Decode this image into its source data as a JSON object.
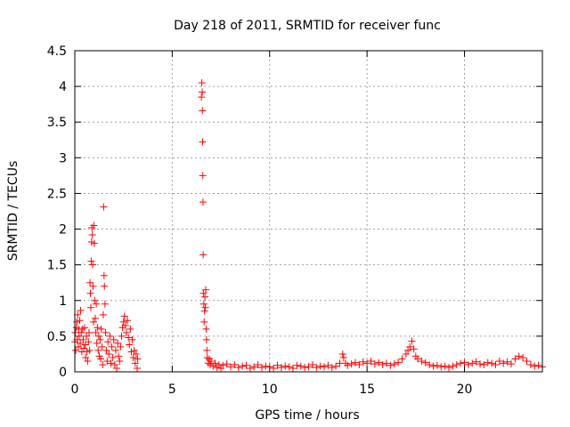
{
  "chart_data": {
    "type": "scatter",
    "title": "Day 218 of 2011, SRMTID for receiver func",
    "xlabel": "GPS time / hours",
    "ylabel": "SRMTID / TECUs",
    "xlim": [
      0,
      24
    ],
    "ylim": [
      0,
      4.5
    ],
    "xticks": [
      0,
      5,
      10,
      15,
      20
    ],
    "yticks": [
      0,
      0.5,
      1,
      1.5,
      2,
      2.5,
      3,
      3.5,
      4,
      4.5
    ],
    "grid": true,
    "marker": "+",
    "color": "#ff0000",
    "series": [
      {
        "points": [
          [
            0.0,
            0.42
          ],
          [
            0.02,
            0.55
          ],
          [
            0.05,
            0.3
          ],
          [
            0.08,
            0.62
          ],
          [
            0.1,
            0.7
          ],
          [
            0.12,
            0.45
          ],
          [
            0.15,
            0.8
          ],
          [
            0.18,
            0.35
          ],
          [
            0.2,
            0.6
          ],
          [
            0.22,
            0.5
          ],
          [
            0.25,
            0.72
          ],
          [
            0.28,
            0.4
          ],
          [
            0.3,
            0.86
          ],
          [
            0.33,
            0.55
          ],
          [
            0.36,
            0.28
          ],
          [
            0.4,
            0.6
          ],
          [
            0.43,
            0.45
          ],
          [
            0.46,
            0.33
          ],
          [
            0.5,
            0.62
          ],
          [
            0.53,
            0.38
          ],
          [
            0.56,
            0.2
          ],
          [
            0.6,
            0.5
          ],
          [
            0.63,
            0.28
          ],
          [
            0.66,
            0.15
          ],
          [
            0.7,
            0.42
          ],
          [
            0.73,
            0.55
          ],
          [
            0.76,
            0.3
          ],
          [
            0.78,
            1.25
          ],
          [
            0.8,
            1.1
          ],
          [
            0.82,
            0.9
          ],
          [
            0.84,
            1.55
          ],
          [
            0.86,
            1.82
          ],
          [
            0.88,
            2.02
          ],
          [
            0.9,
            1.92
          ],
          [
            0.92,
            1.5
          ],
          [
            0.94,
            1.2
          ],
          [
            0.96,
            0.7
          ],
          [
            0.98,
            2.05
          ],
          [
            1.0,
            1.8
          ],
          [
            1.02,
            1.0
          ],
          [
            1.05,
            0.75
          ],
          [
            1.08,
            0.55
          ],
          [
            1.1,
            0.95
          ],
          [
            1.13,
            0.4
          ],
          [
            1.16,
            0.62
          ],
          [
            1.2,
            0.3
          ],
          [
            1.23,
            0.5
          ],
          [
            1.26,
            0.22
          ],
          [
            1.3,
            0.45
          ],
          [
            1.33,
            0.18
          ],
          [
            1.36,
            0.6
          ],
          [
            1.4,
            0.35
          ],
          [
            1.43,
            0.1
          ],
          [
            1.46,
            0.8
          ],
          [
            1.48,
            2.31
          ],
          [
            1.5,
            1.35
          ],
          [
            1.52,
            1.2
          ],
          [
            1.55,
            0.95
          ],
          [
            1.58,
            0.55
          ],
          [
            1.62,
            0.3
          ],
          [
            1.66,
            0.15
          ],
          [
            1.7,
            0.42
          ],
          [
            1.75,
            0.25
          ],
          [
            1.8,
            0.5
          ],
          [
            1.85,
            0.12
          ],
          [
            1.9,
            0.35
          ],
          [
            1.95,
            0.2
          ],
          [
            2.0,
            0.45
          ],
          [
            2.05,
            0.1
          ],
          [
            2.1,
            0.3
          ],
          [
            2.15,
            0.05
          ],
          [
            2.2,
            0.4
          ],
          [
            2.25,
            0.22
          ],
          [
            2.3,
            0.15
          ],
          [
            2.35,
            0.35
          ],
          [
            2.4,
            0.5
          ],
          [
            2.45,
            0.62
          ],
          [
            2.5,
            0.7
          ],
          [
            2.55,
            0.78
          ],
          [
            2.6,
            0.65
          ],
          [
            2.65,
            0.55
          ],
          [
            2.7,
            0.72
          ],
          [
            2.75,
            0.48
          ],
          [
            2.8,
            0.38
          ],
          [
            2.85,
            0.6
          ],
          [
            2.9,
            0.28
          ],
          [
            2.95,
            0.45
          ],
          [
            3.0,
            0.2
          ],
          [
            3.05,
            0.3
          ],
          [
            3.1,
            0.12
          ],
          [
            3.15,
            0.25
          ],
          [
            3.2,
            0.05
          ],
          [
            3.22,
            0.18
          ],
          [
            6.5,
            3.85
          ],
          [
            6.52,
            4.05
          ],
          [
            6.54,
            3.92
          ],
          [
            6.55,
            3.66
          ],
          [
            6.56,
            3.22
          ],
          [
            6.57,
            2.75
          ],
          [
            6.58,
            2.38
          ],
          [
            6.59,
            1.64
          ],
          [
            6.6,
            1.1
          ],
          [
            6.62,
            0.95
          ],
          [
            6.64,
            0.7
          ],
          [
            6.66,
            0.85
          ],
          [
            6.68,
            1.05
          ],
          [
            6.7,
            0.9
          ],
          [
            6.72,
            1.15
          ],
          [
            6.74,
            0.6
          ],
          [
            6.76,
            0.45
          ],
          [
            6.78,
            0.3
          ],
          [
            6.8,
            0.2
          ],
          [
            6.85,
            0.12
          ],
          [
            6.9,
            0.18
          ],
          [
            6.95,
            0.1
          ],
          [
            7.0,
            0.15
          ],
          [
            7.1,
            0.08
          ],
          [
            7.2,
            0.12
          ],
          [
            7.3,
            0.06
          ],
          [
            7.4,
            0.1
          ],
          [
            7.5,
            0.05
          ],
          [
            7.6,
            0.09
          ],
          [
            7.8,
            0.11
          ],
          [
            8.0,
            0.07
          ],
          [
            8.2,
            0.1
          ],
          [
            8.4,
            0.06
          ],
          [
            8.6,
            0.08
          ],
          [
            8.8,
            0.09
          ],
          [
            9.0,
            0.05
          ],
          [
            9.2,
            0.07
          ],
          [
            9.4,
            0.1
          ],
          [
            9.6,
            0.06
          ],
          [
            9.8,
            0.08
          ],
          [
            10.0,
            0.07
          ],
          [
            10.2,
            0.05
          ],
          [
            10.4,
            0.09
          ],
          [
            10.6,
            0.06
          ],
          [
            10.8,
            0.08
          ],
          [
            11.0,
            0.07
          ],
          [
            11.2,
            0.05
          ],
          [
            11.4,
            0.09
          ],
          [
            11.6,
            0.08
          ],
          [
            11.8,
            0.06
          ],
          [
            12.0,
            0.07
          ],
          [
            12.2,
            0.1
          ],
          [
            12.4,
            0.06
          ],
          [
            12.6,
            0.08
          ],
          [
            12.8,
            0.07
          ],
          [
            13.0,
            0.09
          ],
          [
            13.2,
            0.06
          ],
          [
            13.4,
            0.08
          ],
          [
            13.6,
            0.12
          ],
          [
            13.75,
            0.25
          ],
          [
            13.8,
            0.2
          ],
          [
            13.9,
            0.12
          ],
          [
            14.0,
            0.09
          ],
          [
            14.2,
            0.11
          ],
          [
            14.4,
            0.13
          ],
          [
            14.6,
            0.1
          ],
          [
            14.8,
            0.14
          ],
          [
            15.0,
            0.12
          ],
          [
            15.2,
            0.15
          ],
          [
            15.4,
            0.11
          ],
          [
            15.6,
            0.13
          ],
          [
            15.8,
            0.1
          ],
          [
            16.0,
            0.12
          ],
          [
            16.2,
            0.09
          ],
          [
            16.4,
            0.11
          ],
          [
            16.6,
            0.13
          ],
          [
            16.8,
            0.18
          ],
          [
            17.0,
            0.25
          ],
          [
            17.1,
            0.3
          ],
          [
            17.2,
            0.35
          ],
          [
            17.3,
            0.43
          ],
          [
            17.4,
            0.32
          ],
          [
            17.5,
            0.22
          ],
          [
            17.6,
            0.18
          ],
          [
            17.8,
            0.15
          ],
          [
            18.0,
            0.13
          ],
          [
            18.2,
            0.1
          ],
          [
            18.4,
            0.08
          ],
          [
            18.6,
            0.09
          ],
          [
            18.8,
            0.07
          ],
          [
            19.0,
            0.08
          ],
          [
            19.2,
            0.06
          ],
          [
            19.4,
            0.08
          ],
          [
            19.6,
            0.1
          ],
          [
            19.8,
            0.12
          ],
          [
            20.0,
            0.13
          ],
          [
            20.2,
            0.1
          ],
          [
            20.4,
            0.12
          ],
          [
            20.6,
            0.14
          ],
          [
            20.8,
            0.11
          ],
          [
            21.0,
            0.1
          ],
          [
            21.2,
            0.13
          ],
          [
            21.4,
            0.12
          ],
          [
            21.6,
            0.1
          ],
          [
            21.8,
            0.15
          ],
          [
            22.0,
            0.12
          ],
          [
            22.2,
            0.14
          ],
          [
            22.4,
            0.11
          ],
          [
            22.6,
            0.18
          ],
          [
            22.8,
            0.22
          ],
          [
            23.0,
            0.2
          ],
          [
            23.2,
            0.15
          ],
          [
            23.4,
            0.1
          ],
          [
            23.6,
            0.08
          ],
          [
            23.8,
            0.09
          ],
          [
            24.0,
            0.07
          ]
        ]
      }
    ]
  }
}
